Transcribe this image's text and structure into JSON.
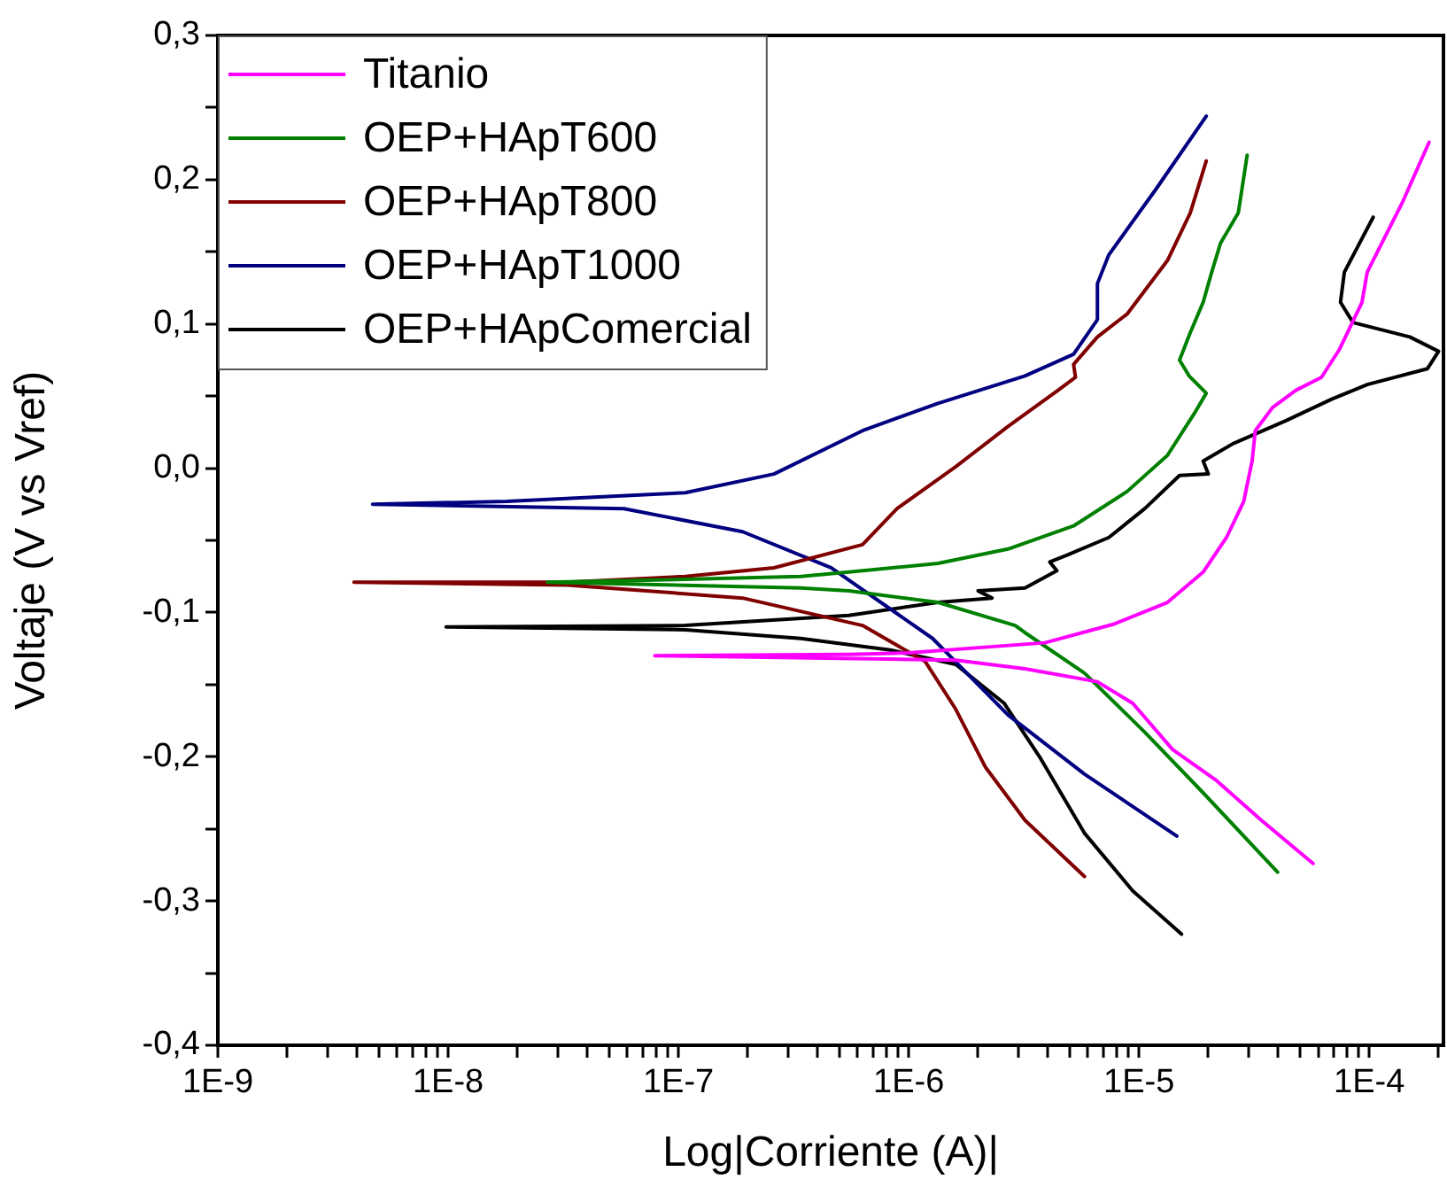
{
  "chart_data": {
    "type": "line",
    "xlabel": "Log|Corriente (A)|",
    "ylabel": "Voltaje (V vs Vref)",
    "log": "x",
    "grid": false,
    "legend": "top left",
    "marker": "none",
    "line_style": "solid",
    "xlim": [
      1e-09,
      0.00021
    ],
    "xticks": [
      {
        "value": 1e-09,
        "label": "1E-9"
      },
      {
        "value": 2e-09,
        "label": null
      },
      {
        "value": 3e-09,
        "label": null
      },
      {
        "value": 4e-09,
        "label": null
      },
      {
        "value": 5e-09,
        "label": null
      },
      {
        "value": 6e-09,
        "label": null
      },
      {
        "value": 7e-09,
        "label": null
      },
      {
        "value": 8e-09,
        "label": null
      },
      {
        "value": 9e-09,
        "label": null
      },
      {
        "value": 1e-08,
        "label": "1E-8"
      },
      {
        "value": 2e-08,
        "label": null
      },
      {
        "value": 3e-08,
        "label": null
      },
      {
        "value": 4e-08,
        "label": null
      },
      {
        "value": 5e-08,
        "label": null
      },
      {
        "value": 6e-08,
        "label": null
      },
      {
        "value": 7e-08,
        "label": null
      },
      {
        "value": 8e-08,
        "label": null
      },
      {
        "value": 9e-08,
        "label": null
      },
      {
        "value": 1e-07,
        "label": "1E-7"
      },
      {
        "value": 2e-07,
        "label": null
      },
      {
        "value": 3e-07,
        "label": null
      },
      {
        "value": 4e-07,
        "label": null
      },
      {
        "value": 5e-07,
        "label": null
      },
      {
        "value": 6e-07,
        "label": null
      },
      {
        "value": 7e-07,
        "label": null
      },
      {
        "value": 8e-07,
        "label": null
      },
      {
        "value": 9e-07,
        "label": null
      },
      {
        "value": 1e-06,
        "label": "1E-6"
      },
      {
        "value": 2e-06,
        "label": null
      },
      {
        "value": 3e-06,
        "label": null
      },
      {
        "value": 4e-06,
        "label": null
      },
      {
        "value": 5e-06,
        "label": null
      },
      {
        "value": 6e-06,
        "label": null
      },
      {
        "value": 7e-06,
        "label": null
      },
      {
        "value": 8e-06,
        "label": null
      },
      {
        "value": 9e-06,
        "label": null
      },
      {
        "value": 1e-05,
        "label": "1E-5"
      },
      {
        "value": 2e-05,
        "label": null
      },
      {
        "value": 3e-05,
        "label": null
      },
      {
        "value": 4e-05,
        "label": null
      },
      {
        "value": 5e-05,
        "label": null
      },
      {
        "value": 6e-05,
        "label": null
      },
      {
        "value": 7e-05,
        "label": null
      },
      {
        "value": 8e-05,
        "label": null
      },
      {
        "value": 9e-05,
        "label": null
      },
      {
        "value": 0.0001,
        "label": "1E-4"
      },
      {
        "value": 0.0002,
        "label": null
      }
    ],
    "ylim": [
      -0.4,
      0.3
    ],
    "yticks": [
      {
        "value": -0.4,
        "label": "-0,4"
      },
      {
        "value": -0.35,
        "label": null
      },
      {
        "value": -0.3,
        "label": "-0,3"
      },
      {
        "value": -0.25,
        "label": null
      },
      {
        "value": -0.2,
        "label": "-0,2"
      },
      {
        "value": -0.15,
        "label": null
      },
      {
        "value": -0.1,
        "label": "-0,1"
      },
      {
        "value": -0.05,
        "label": null
      },
      {
        "value": 0,
        "label": "0,0"
      },
      {
        "value": 0.05,
        "label": null
      },
      {
        "value": 0.1,
        "label": "0,1"
      },
      {
        "value": 0.15,
        "label": null
      },
      {
        "value": 0.2,
        "label": "0,2"
      },
      {
        "value": 0.25,
        "label": null
      },
      {
        "value": 0.3,
        "label": "0,3"
      }
    ],
    "series": [
      {
        "name": "Titanio",
        "color": "#ff00ff",
        "x": [
          0.000182,
          0.00014,
          9.8e-05,
          9.3e-05,
          7.4e-05,
          6.2e-05,
          4.8e-05,
          3.8e-05,
          3.2e-05,
          3.1e-05,
          2.85e-05,
          2.4e-05,
          1.9e-05,
          1.33e-05,
          7.8e-06,
          3.9e-06,
          1e-06,
          5.5e-07,
          7.9e-08,
          1.6e-06,
          3.2e-06,
          6.6e-06,
          9.4e-06,
          1.4e-05,
          2.15e-05,
          3.4e-05,
          5.7e-05
        ],
        "values": [
          0.226,
          0.185,
          0.136,
          0.115,
          0.082,
          0.063,
          0.054,
          0.042,
          0.026,
          0.005,
          -0.023,
          -0.048,
          -0.072,
          -0.093,
          -0.108,
          -0.121,
          -0.128,
          -0.129,
          -0.13,
          -0.133,
          -0.139,
          -0.148,
          -0.163,
          -0.195,
          -0.216,
          -0.244,
          -0.274
        ]
      },
      {
        "name": "OEP+HApT600",
        "color": "#008000",
        "x": [
          2.95e-05,
          2.7e-05,
          2.26e-05,
          2.07e-05,
          1.9e-05,
          1.67e-05,
          1.5e-05,
          1.65e-05,
          1.96e-05,
          1.74e-05,
          1.33e-05,
          8.9e-06,
          5.2e-06,
          2.7e-06,
          1.34e-06,
          5.5e-07,
          3.4e-07,
          5.8e-08,
          2.7e-08,
          3.4e-07,
          5.5e-07,
          1.34e-06,
          2.9e-06,
          3.2e-06,
          5.8e-06,
          1.06e-05,
          1.9e-05,
          4e-05
        ],
        "values": [
          0.217,
          0.177,
          0.156,
          0.136,
          0.115,
          0.094,
          0.075,
          0.064,
          0.052,
          0.038,
          0.009,
          -0.016,
          -0.04,
          -0.056,
          -0.066,
          -0.072,
          -0.075,
          -0.078,
          -0.079,
          -0.083,
          -0.085,
          -0.093,
          -0.109,
          -0.114,
          -0.142,
          -0.183,
          -0.225,
          -0.28
        ]
      },
      {
        "name": "OEP+HApT800",
        "color": "#800000",
        "x": [
          1.96e-05,
          1.67e-05,
          1.33e-05,
          8.9e-06,
          6.6e-06,
          5.2e-06,
          5.3e-06,
          4.45e-06,
          2.7e-06,
          1.6e-06,
          8.9e-07,
          6.3e-07,
          2.6e-07,
          1.07e-07,
          3.3e-08,
          3.9e-09,
          3.3e-08,
          1.9e-07,
          6.3e-07,
          1.18e-06,
          1.6e-06,
          2.15e-06,
          3.2e-06,
          5.8e-06
        ],
        "values": [
          0.213,
          0.177,
          0.144,
          0.107,
          0.091,
          0.072,
          0.063,
          0.054,
          0.029,
          0.001,
          -0.028,
          -0.053,
          -0.069,
          -0.075,
          -0.079,
          -0.079,
          -0.081,
          -0.09,
          -0.109,
          -0.134,
          -0.167,
          -0.207,
          -0.244,
          -0.283
        ]
      },
      {
        "name": "OEP+HApT1000",
        "color": "#000080",
        "x": [
          1.96e-05,
          1.18e-05,
          7.4e-06,
          6.6e-06,
          6.6e-06,
          5.2e-06,
          3.2e-06,
          1.34e-06,
          6.3e-07,
          2.6e-07,
          1.07e-07,
          1.8e-08,
          4.7e-09,
          5.8e-08,
          1.9e-07,
          4.6e-07,
          1.27e-06,
          2.7e-06,
          5.8e-06,
          1.46e-05
        ],
        "values": [
          0.244,
          0.193,
          0.148,
          0.128,
          0.103,
          0.079,
          0.064,
          0.045,
          0.026,
          -0.004,
          -0.017,
          -0.023,
          -0.025,
          -0.028,
          -0.044,
          -0.069,
          -0.118,
          -0.171,
          -0.212,
          -0.255
        ]
      },
      {
        "name": "OEP+HApComercial",
        "color": "#000000",
        "x": [
          0.000104,
          7.8e-05,
          7.5e-05,
          8.5e-05,
          0.00015,
          0.0002,
          0.000179,
          9.8e-05,
          6.9e-05,
          4.35e-05,
          2.56e-05,
          1.9e-05,
          2e-05,
          1.5e-05,
          1.06e-05,
          7.4e-06,
          4.9e-06,
          4.1e-06,
          4.4e-06,
          3.2e-06,
          2e-06,
          2.3e-06,
          1.34e-06,
          5.5e-07,
          1.07e-07,
          9.8e-09,
          1.07e-07,
          3.4e-07,
          8.3e-07,
          1.6e-06,
          2.6e-06,
          3.7e-06,
          5.8e-06,
          9.4e-06,
          1.53e-05
        ],
        "values": [
          0.174,
          0.136,
          0.115,
          0.101,
          0.091,
          0.081,
          0.069,
          0.058,
          0.048,
          0.033,
          0.017,
          0.005,
          -0.004,
          -0.005,
          -0.028,
          -0.048,
          -0.06,
          -0.065,
          -0.071,
          -0.083,
          -0.085,
          -0.09,
          -0.093,
          -0.102,
          -0.109,
          -0.11,
          -0.112,
          -0.118,
          -0.126,
          -0.136,
          -0.163,
          -0.2,
          -0.253,
          -0.293,
          -0.323
        ]
      }
    ]
  }
}
